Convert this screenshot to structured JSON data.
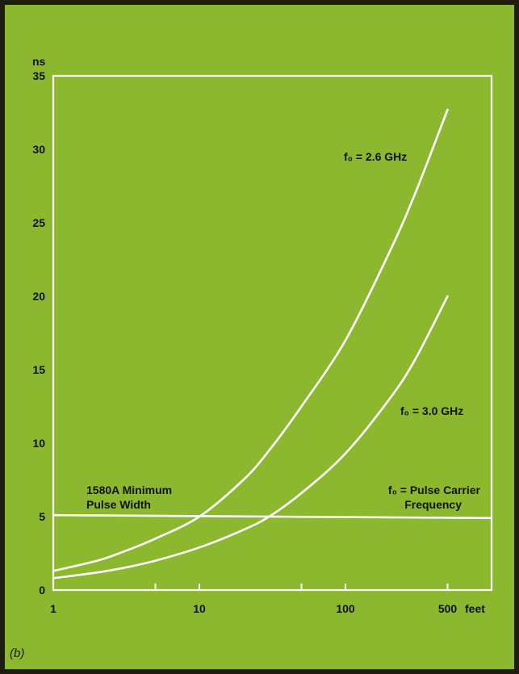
{
  "chart_data": {
    "type": "line",
    "title": "",
    "panel_label": "(b)",
    "ylabel": "ns",
    "xunit": "feet",
    "x_scale": "log",
    "xlim": [
      1,
      1000
    ],
    "ylim": [
      0,
      35
    ],
    "y_ticks": [
      "0",
      "5",
      "10",
      "15",
      "20",
      "25",
      "30",
      "35"
    ],
    "x_ticks": [
      {
        "value": 1,
        "label": "1"
      },
      {
        "value": 10,
        "label": "10"
      },
      {
        "value": 100,
        "label": "100"
      },
      {
        "value": 500,
        "label": "500"
      }
    ],
    "x_minor_ticks": [
      5,
      50
    ],
    "series": [
      {
        "name": "f₀ = 2.6 GHz",
        "x": [
          1,
          2,
          3,
          5,
          10,
          20,
          30,
          50,
          100,
          200,
          300,
          500
        ],
        "y": [
          1.3,
          2.0,
          2.6,
          3.5,
          5.0,
          7.5,
          9.5,
          12.5,
          17.0,
          23.0,
          27.0,
          32.7
        ]
      },
      {
        "name": "f₀ = 3.0 GHz",
        "x": [
          1,
          2,
          3,
          5,
          10,
          20,
          30,
          50,
          100,
          200,
          300,
          500
        ],
        "y": [
          0.8,
          1.2,
          1.5,
          2.0,
          2.9,
          4.1,
          5.0,
          6.6,
          9.3,
          13.0,
          15.7,
          20.0
        ]
      },
      {
        "name": "1580A Minimum Pulse Width",
        "x": [
          1,
          1000
        ],
        "y": [
          5.1,
          4.9
        ]
      }
    ],
    "annotations": {
      "curve_a": "f₀ = 2.6 GHz",
      "curve_b": "f₀ = 3.0 GHz",
      "min_line_1": "1580A Minimum",
      "min_line_2": "Pulse Width",
      "legend_1": "f₀ = Pulse Carrier",
      "legend_2": "Frequency"
    },
    "grid": false,
    "colors": {
      "background": "#8cb82f",
      "lines": "#ffffff",
      "text": "#111111",
      "border": "#1f1d12"
    }
  }
}
